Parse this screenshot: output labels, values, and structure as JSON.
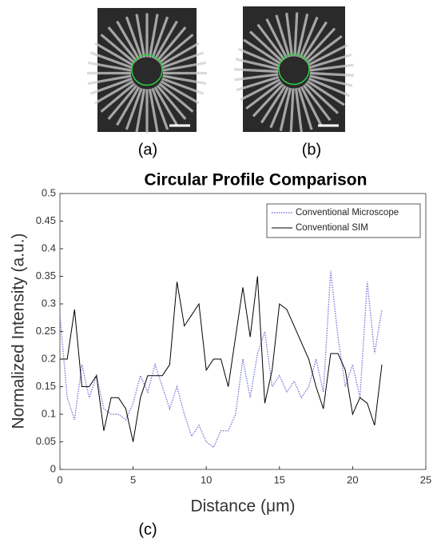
{
  "figure_labels": {
    "a": "(a)",
    "b": "(b)",
    "c": "(c)"
  },
  "chart_data": {
    "type": "line",
    "title": "Circular Profile Comparison",
    "x_label": "Distance (μm)",
    "y_label": "Normalized Intensity (a.u.)",
    "x": [
      0,
      0.5,
      1,
      1.5,
      2,
      2.5,
      3,
      3.5,
      4,
      4.5,
      5,
      5.5,
      6,
      6.5,
      7,
      7.5,
      8,
      8.5,
      9,
      9.5,
      10,
      10.5,
      11,
      11.5,
      12,
      12.5,
      13,
      13.5,
      14,
      14.5,
      15,
      15.5,
      16,
      16.5,
      17,
      17.5,
      18,
      18.5,
      19,
      19.5,
      20,
      20.5,
      21,
      21.5,
      22
    ],
    "series": [
      {
        "name": "Conventional Microscope",
        "color": "#7b7bdc",
        "dash": "dotted",
        "values": [
          0.28,
          0.13,
          0.09,
          0.19,
          0.13,
          0.17,
          0.11,
          0.1,
          0.1,
          0.09,
          0.12,
          0.17,
          0.14,
          0.19,
          0.15,
          0.11,
          0.15,
          0.1,
          0.06,
          0.08,
          0.05,
          0.04,
          0.07,
          0.07,
          0.1,
          0.2,
          0.13,
          0.21,
          0.25,
          0.15,
          0.17,
          0.14,
          0.16,
          0.13,
          0.15,
          0.2,
          0.14,
          0.36,
          0.24,
          0.15,
          0.19,
          0.13,
          0.34,
          0.21,
          0.29
        ]
      },
      {
        "name": "Conventional SIM",
        "color": "#000000",
        "dash": "solid",
        "values": [
          0.2,
          0.2,
          0.29,
          0.15,
          0.15,
          0.17,
          0.07,
          0.13,
          0.13,
          0.11,
          0.05,
          0.13,
          0.17,
          0.17,
          0.17,
          0.19,
          0.34,
          0.26,
          0.28,
          0.3,
          0.18,
          0.2,
          0.2,
          0.15,
          0.24,
          0.33,
          0.24,
          0.35,
          0.12,
          0.18,
          0.3,
          0.29,
          0.26,
          0.23,
          0.2,
          0.15,
          0.11,
          0.21,
          0.21,
          0.18,
          0.1,
          0.13,
          0.12,
          0.08,
          0.19
        ]
      }
    ],
    "xlim": [
      0,
      25
    ],
    "ylim": [
      0,
      0.5
    ],
    "xticks": [
      0,
      5,
      10,
      15,
      20,
      25
    ],
    "yticks": [
      0,
      0.05,
      0.1,
      0.15,
      0.2,
      0.25,
      0.3,
      0.35,
      0.4,
      0.45,
      0.5
    ],
    "legend": "top-right"
  }
}
